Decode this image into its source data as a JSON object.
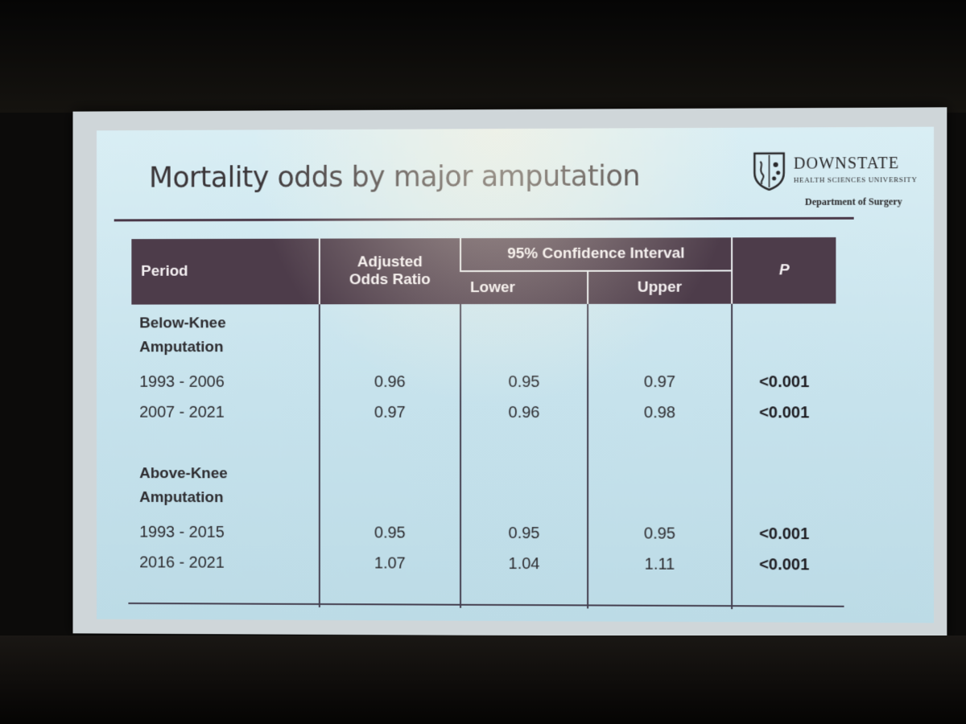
{
  "slide": {
    "title": "Mortality odds by major amputation",
    "logo": {
      "name": "DOWNSTATE",
      "subtitle": "HEALTH SCIENCES UNIVERSITY",
      "department": "Department of Surgery"
    }
  },
  "table": {
    "headers": {
      "period": "Period",
      "aor_line1": "Adjusted",
      "aor_line2": "Odds Ratio",
      "ci": "95% Confidence Interval",
      "lower": "Lower",
      "upper": "Upper",
      "p": "P"
    },
    "groups": [
      {
        "label_line1": "Below-Knee",
        "label_line2": "Amputation",
        "rows": [
          {
            "period": "1993 - 2006",
            "aor": "0.96",
            "lower": "0.95",
            "upper": "0.97",
            "p": "<0.001"
          },
          {
            "period": "2007 - 2021",
            "aor": "0.97",
            "lower": "0.96",
            "upper": "0.98",
            "p": "<0.001"
          }
        ]
      },
      {
        "label_line1": "Above-Knee",
        "label_line2": "Amputation",
        "rows": [
          {
            "period": "1993 - 2015",
            "aor": "0.95",
            "lower": "0.95",
            "upper": "0.95",
            "p": "<0.001"
          },
          {
            "period": "2016 - 2021",
            "aor": "1.07",
            "lower": "1.04",
            "upper": "1.11",
            "p": "<0.001"
          }
        ]
      }
    ]
  },
  "colors": {
    "header_bg": "#4d3c4a",
    "slide_bg": "#c6e2ec",
    "title_text": "#3a3538"
  }
}
